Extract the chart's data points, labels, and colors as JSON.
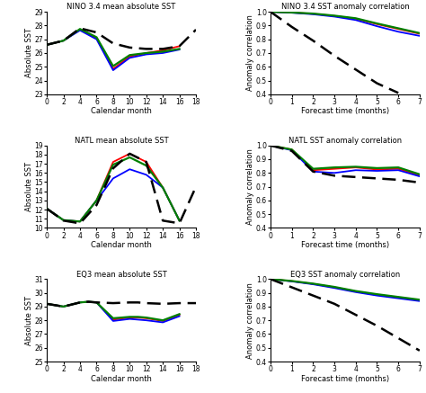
{
  "titles": [
    "NINO 3.4 mean absolute SST",
    "NINO 3.4 SST anomaly correlation",
    "NATL mean absolute SST",
    "NATL SST anomaly correlation",
    "EQ3 mean absolute SST",
    "EQ3 SST anomaly correlation"
  ],
  "xlabel_left": "Calendar month",
  "xlabel_right": "Forecast time (months)",
  "ylabel_left": "Absolute SST",
  "ylabel_right": "Anomaly correlation",
  "nino34_sst": {
    "x": [
      0,
      2,
      4,
      6,
      8,
      10,
      12,
      14,
      16,
      18
    ],
    "obs": [
      26.6,
      26.9,
      27.8,
      27.5,
      26.7,
      26.4,
      26.3,
      26.3,
      26.5,
      27.7
    ],
    "red": [
      26.6,
      26.9,
      27.7,
      27.1,
      24.85,
      25.75,
      26.0,
      26.2,
      26.5,
      null
    ],
    "blue": [
      26.6,
      26.9,
      27.65,
      27.0,
      24.75,
      25.65,
      25.9,
      26.0,
      26.25,
      null
    ],
    "green": [
      26.6,
      26.9,
      27.75,
      27.15,
      25.05,
      25.85,
      26.0,
      26.1,
      26.3,
      null
    ],
    "ylim": [
      23,
      29
    ],
    "yticks": [
      23,
      24,
      25,
      26,
      27,
      28,
      29
    ],
    "xticks": [
      0,
      2,
      4,
      6,
      8,
      10,
      12,
      14,
      16,
      18
    ]
  },
  "nino34_corr": {
    "x": [
      0,
      1,
      2,
      3,
      4,
      5,
      6,
      7
    ],
    "obs": [
      1.0,
      0.89,
      0.79,
      0.68,
      0.58,
      0.48,
      0.41,
      null
    ],
    "red": [
      1.0,
      0.995,
      0.985,
      0.97,
      0.95,
      0.91,
      0.875,
      0.84
    ],
    "blue": [
      1.0,
      0.993,
      0.982,
      0.965,
      0.94,
      0.895,
      0.855,
      0.825
    ],
    "green": [
      1.0,
      0.995,
      0.987,
      0.972,
      0.953,
      0.915,
      0.88,
      0.845
    ],
    "ylim": [
      0.4,
      1.0
    ],
    "yticks": [
      0.4,
      0.5,
      0.6,
      0.7,
      0.8,
      0.9,
      1.0
    ],
    "xticks": [
      0,
      1,
      2,
      3,
      4,
      5,
      6,
      7
    ]
  },
  "natl_sst": {
    "x": [
      0,
      2,
      4,
      6,
      8,
      10,
      12,
      14,
      16,
      18
    ],
    "obs": [
      12.1,
      10.8,
      10.5,
      12.5,
      16.5,
      18.1,
      17.2,
      10.8,
      10.5,
      14.5
    ],
    "red": [
      12.1,
      10.85,
      10.7,
      13.0,
      17.2,
      18.1,
      17.2,
      14.4,
      10.8,
      null
    ],
    "blue": [
      12.1,
      10.85,
      10.7,
      13.0,
      15.4,
      16.4,
      15.8,
      14.4,
      10.8,
      null
    ],
    "green": [
      12.1,
      10.85,
      10.7,
      13.0,
      16.9,
      17.7,
      16.8,
      14.4,
      10.8,
      null
    ],
    "ylim": [
      10,
      19
    ],
    "yticks": [
      10,
      11,
      12,
      13,
      14,
      15,
      16,
      17,
      18,
      19
    ],
    "xticks": [
      0,
      2,
      4,
      6,
      8,
      10,
      12,
      14,
      16,
      18
    ]
  },
  "natl_corr": {
    "x": [
      0,
      1,
      2,
      3,
      4,
      5,
      6,
      7
    ],
    "obs": [
      1.0,
      0.96,
      0.81,
      0.78,
      0.77,
      0.76,
      0.75,
      0.73
    ],
    "red": [
      1.0,
      0.97,
      0.82,
      0.83,
      0.84,
      0.825,
      0.83,
      0.78
    ],
    "blue": [
      1.0,
      0.965,
      0.81,
      0.8,
      0.82,
      0.815,
      0.82,
      0.775
    ],
    "green": [
      1.0,
      0.97,
      0.83,
      0.84,
      0.845,
      0.835,
      0.84,
      0.79
    ],
    "ylim": [
      0.4,
      1.0
    ],
    "yticks": [
      0.4,
      0.5,
      0.6,
      0.7,
      0.8,
      0.9,
      1.0
    ],
    "xticks": [
      0,
      1,
      2,
      3,
      4,
      5,
      6,
      7
    ]
  },
  "eq3_sst": {
    "x": [
      0,
      2,
      4,
      5,
      6,
      8,
      10,
      11,
      12,
      14,
      16,
      18
    ],
    "obs": [
      29.2,
      29.0,
      29.3,
      29.35,
      29.3,
      29.25,
      29.3,
      29.3,
      29.25,
      29.2,
      29.25,
      29.25
    ],
    "red": [
      29.2,
      29.0,
      29.3,
      29.35,
      29.3,
      28.05,
      28.2,
      28.2,
      28.15,
      27.95,
      28.4,
      null
    ],
    "blue": [
      29.2,
      29.0,
      29.3,
      29.35,
      29.3,
      27.95,
      28.1,
      28.05,
      28.0,
      27.85,
      28.3,
      null
    ],
    "green": [
      29.2,
      29.0,
      29.3,
      29.35,
      29.3,
      28.15,
      28.25,
      28.25,
      28.2,
      28.0,
      28.45,
      null
    ],
    "ylim": [
      25,
      31
    ],
    "yticks": [
      25,
      26,
      27,
      28,
      29,
      30,
      31
    ],
    "xticks": [
      0,
      2,
      4,
      6,
      8,
      10,
      12,
      14,
      16,
      18
    ]
  },
  "eq3_corr": {
    "x": [
      0,
      1,
      2,
      3,
      4,
      5,
      6,
      7
    ],
    "obs": [
      1.0,
      0.94,
      0.88,
      0.82,
      0.74,
      0.66,
      0.57,
      0.48
    ],
    "red": [
      1.0,
      0.985,
      0.965,
      0.94,
      0.91,
      0.885,
      0.865,
      0.845
    ],
    "blue": [
      1.0,
      0.983,
      0.962,
      0.935,
      0.905,
      0.88,
      0.86,
      0.84
    ],
    "green": [
      1.0,
      0.986,
      0.967,
      0.943,
      0.913,
      0.89,
      0.87,
      0.85
    ],
    "ylim": [
      0.4,
      1.0
    ],
    "yticks": [
      0.4,
      0.5,
      0.6,
      0.7,
      0.8,
      0.9,
      1.0
    ],
    "xticks": [
      0,
      1,
      2,
      3,
      4,
      5,
      6,
      7
    ]
  }
}
